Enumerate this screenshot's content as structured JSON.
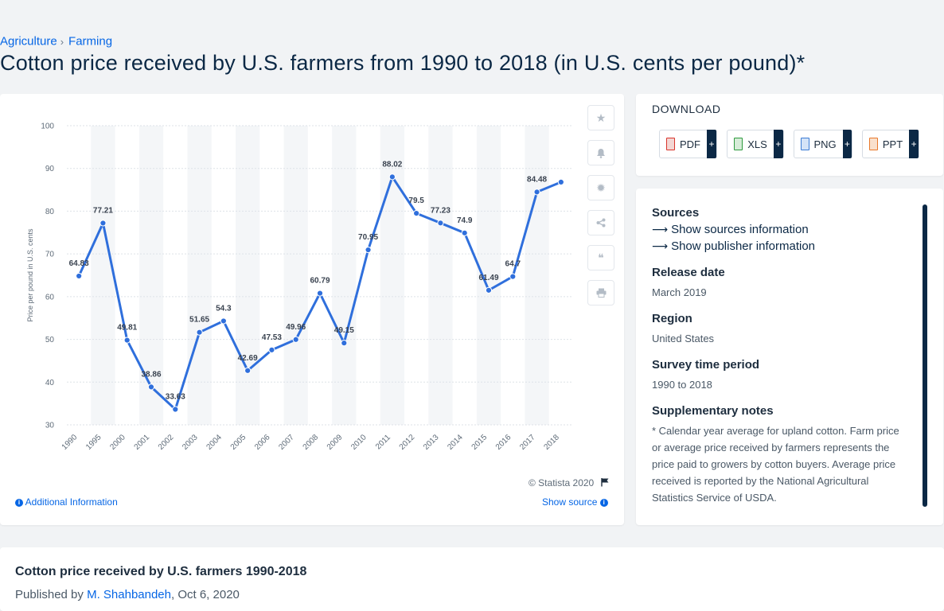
{
  "breadcrumb": {
    "items": [
      "Agriculture",
      "Farming"
    ],
    "separator": "›"
  },
  "page_title": "Cotton price received by U.S. farmers from 1990 to 2018 (in U.S. cents per pound)*",
  "chart_data": {
    "type": "line",
    "x": [
      "1990",
      "1995",
      "2000",
      "2001",
      "2002",
      "2003",
      "2004",
      "2005",
      "2006",
      "2007",
      "2008",
      "2009",
      "2010",
      "2011",
      "2012",
      "2013",
      "2014",
      "2015",
      "2016",
      "2017",
      "2018"
    ],
    "series": [
      {
        "values": [
          64.83,
          77.21,
          49.81,
          38.86,
          33.63,
          51.65,
          54.3,
          42.69,
          47.53,
          49.96,
          60.79,
          49.15,
          70.95,
          88.02,
          79.5,
          77.23,
          74.9,
          61.49,
          64.7,
          84.48,
          86.8
        ]
      }
    ],
    "data_labels": [
      "64.83",
      "77.21",
      "49.81",
      "38.86",
      "33.63",
      "51.65",
      "54.3",
      "42.69",
      "47.53",
      "49.96",
      "60.79",
      "49.15",
      "70.95",
      "88.02",
      "79.5",
      "77.23",
      "74.9",
      "61.49",
      "64.7",
      "84.48",
      ""
    ],
    "ylabel": "Price per pound in U.S. cents",
    "ylim": [
      30,
      100
    ],
    "yticks": [
      30,
      40,
      50,
      60,
      70,
      80,
      90,
      100
    ],
    "grid": true,
    "color": "#2f6fdc"
  },
  "chart_footer": {
    "copyright": "© Statista 2020",
    "additional_info": "Additional Information",
    "show_source": "Show source"
  },
  "download": {
    "heading": "DOWNLOAD",
    "formats": [
      {
        "label": "PDF",
        "color": "#d9342b"
      },
      {
        "label": "XLS",
        "color": "#2e9a3e"
      },
      {
        "label": "PNG",
        "color": "#3a7bd5"
      },
      {
        "label": "PPT",
        "color": "#e8782a"
      }
    ],
    "plus": "+"
  },
  "info": {
    "sources_heading": "Sources",
    "show_sources": "Show sources information",
    "show_publisher": "Show publisher information",
    "release_heading": "Release date",
    "release_value": "March 2019",
    "region_heading": "Region",
    "region_value": "United States",
    "survey_heading": "Survey time period",
    "survey_value": "1990 to 2018",
    "notes_heading": "Supplementary notes",
    "notes_value": "* Calendar year average for upland cotton. Farm price or average price received by farmers represents the price paid to growers by cotton buyers. Average price received is reported by the National Agricultural Statistics Service of USDA."
  },
  "footer": {
    "title": "Cotton price received by U.S. farmers 1990-2018",
    "published_prefix": "Published by",
    "author": "M. Shahbandeh",
    "date": ", Oct 6, 2020"
  },
  "tools": [
    "star-icon",
    "bell-icon",
    "gear-icon",
    "share-icon",
    "quote-icon",
    "print-icon"
  ]
}
